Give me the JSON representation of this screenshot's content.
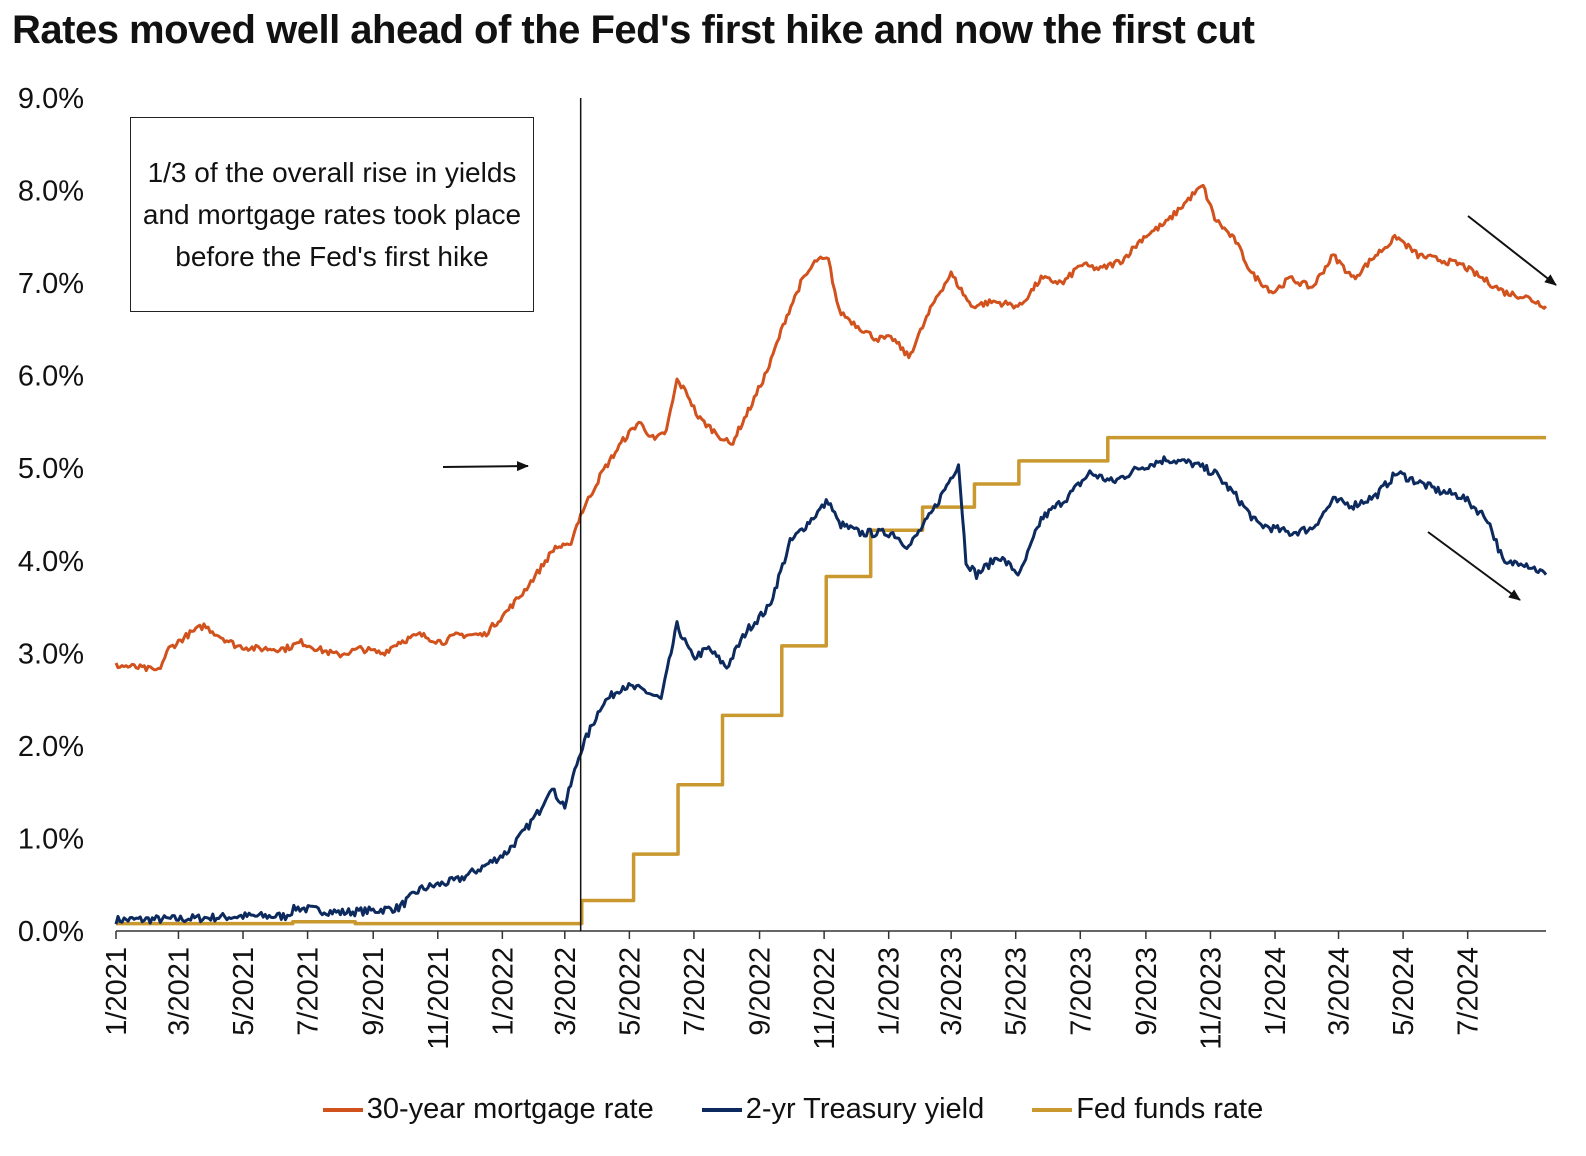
{
  "title": "Rates moved well ahead of the Fed's first hike and now the first cut",
  "annotation": "1/3 of the overall rise in yields and mortgage rates took place before the Fed's first hike",
  "colors": {
    "mortgage": "#d2521e",
    "treasury": "#0d2a5e",
    "fedfunds": "#c9982e",
    "axis": "#333333"
  },
  "chart_data": {
    "type": "line",
    "xlabel": "",
    "ylabel": "",
    "ylim": [
      0,
      9
    ],
    "y_ticks": [
      "0.0%",
      "1.0%",
      "2.0%",
      "3.0%",
      "4.0%",
      "5.0%",
      "6.0%",
      "7.0%",
      "8.0%",
      "9.0%"
    ],
    "x_ticks": [
      "1/2021",
      "3/2021",
      "5/2021",
      "7/2021",
      "9/2021",
      "11/2021",
      "1/2022",
      "3/2022",
      "5/2022",
      "7/2022",
      "9/2022",
      "11/2022",
      "1/2023",
      "3/2023",
      "5/2023",
      "7/2023",
      "9/2023",
      "11/2023",
      "1/2024",
      "3/2024",
      "5/2024",
      "7/2024"
    ],
    "x_range": [
      "2021-01-01",
      "2024-09-13"
    ],
    "first_hike_date": "2022-03-16",
    "legend_position": "bottom",
    "grid": false,
    "series": [
      {
        "name": "30-year mortgage rate",
        "key": "mortgage",
        "points": [
          [
            "2021-01-01",
            2.87
          ],
          [
            "2021-01-20",
            2.85
          ],
          [
            "2021-02-10",
            2.81
          ],
          [
            "2021-02-20",
            3.05
          ],
          [
            "2021-03-10",
            3.2
          ],
          [
            "2021-03-25",
            3.3
          ],
          [
            "2021-04-10",
            3.18
          ],
          [
            "2021-04-25",
            3.08
          ],
          [
            "2021-05-15",
            3.05
          ],
          [
            "2021-06-10",
            3.05
          ],
          [
            "2021-06-25",
            3.12
          ],
          [
            "2021-07-15",
            3.03
          ],
          [
            "2021-07-30",
            2.98
          ],
          [
            "2021-08-20",
            3.05
          ],
          [
            "2021-09-10",
            3.0
          ],
          [
            "2021-09-25",
            3.12
          ],
          [
            "2021-10-15",
            3.2
          ],
          [
            "2021-11-05",
            3.12
          ],
          [
            "2021-11-20",
            3.2
          ],
          [
            "2021-12-15",
            3.2
          ],
          [
            "2022-01-05",
            3.45
          ],
          [
            "2022-01-20",
            3.65
          ],
          [
            "2022-02-05",
            3.9
          ],
          [
            "2022-02-20",
            4.15
          ],
          [
            "2022-03-05",
            4.15
          ],
          [
            "2022-03-16",
            4.5
          ],
          [
            "2022-04-05",
            4.95
          ],
          [
            "2022-04-25",
            5.3
          ],
          [
            "2022-05-10",
            5.5
          ],
          [
            "2022-05-25",
            5.3
          ],
          [
            "2022-06-05",
            5.4
          ],
          [
            "2022-06-15",
            5.95
          ],
          [
            "2022-06-25",
            5.8
          ],
          [
            "2022-07-05",
            5.55
          ],
          [
            "2022-07-20",
            5.4
          ],
          [
            "2022-08-05",
            5.25
          ],
          [
            "2022-08-25",
            5.7
          ],
          [
            "2022-09-10",
            6.1
          ],
          [
            "2022-09-25",
            6.6
          ],
          [
            "2022-10-10",
            7.0
          ],
          [
            "2022-10-25",
            7.25
          ],
          [
            "2022-11-05",
            7.25
          ],
          [
            "2022-11-15",
            6.7
          ],
          [
            "2022-12-01",
            6.55
          ],
          [
            "2022-12-20",
            6.4
          ],
          [
            "2023-01-05",
            6.4
          ],
          [
            "2023-01-20",
            6.2
          ],
          [
            "2023-02-15",
            6.85
          ],
          [
            "2023-03-01",
            7.1
          ],
          [
            "2023-03-20",
            6.75
          ],
          [
            "2023-04-10",
            6.8
          ],
          [
            "2023-05-05",
            6.75
          ],
          [
            "2023-05-25",
            7.05
          ],
          [
            "2023-06-15",
            7.0
          ],
          [
            "2023-07-01",
            7.2
          ],
          [
            "2023-07-20",
            7.15
          ],
          [
            "2023-08-10",
            7.25
          ],
          [
            "2023-08-30",
            7.5
          ],
          [
            "2023-09-20",
            7.65
          ],
          [
            "2023-10-15",
            7.95
          ],
          [
            "2023-10-25",
            8.05
          ],
          [
            "2023-11-05",
            7.7
          ],
          [
            "2023-11-25",
            7.45
          ],
          [
            "2023-12-10",
            7.1
          ],
          [
            "2023-12-30",
            6.9
          ],
          [
            "2024-01-15",
            7.05
          ],
          [
            "2024-02-05",
            6.95
          ],
          [
            "2024-02-25",
            7.3
          ],
          [
            "2024-03-15",
            7.05
          ],
          [
            "2024-04-05",
            7.3
          ],
          [
            "2024-04-25",
            7.5
          ],
          [
            "2024-05-15",
            7.3
          ],
          [
            "2024-06-05",
            7.25
          ],
          [
            "2024-06-25",
            7.2
          ],
          [
            "2024-07-15",
            7.05
          ],
          [
            "2024-08-05",
            6.9
          ],
          [
            "2024-08-25",
            6.85
          ],
          [
            "2024-09-13",
            6.75
          ]
        ]
      },
      {
        "name": "2-yr Treasury yield",
        "key": "treasury",
        "points": [
          [
            "2021-01-01",
            0.12
          ],
          [
            "2021-03-01",
            0.13
          ],
          [
            "2021-05-01",
            0.16
          ],
          [
            "2021-06-10",
            0.16
          ],
          [
            "2021-06-20",
            0.25
          ],
          [
            "2021-08-01",
            0.2
          ],
          [
            "2021-09-01",
            0.22
          ],
          [
            "2021-09-25",
            0.25
          ],
          [
            "2021-10-15",
            0.45
          ],
          [
            "2021-11-01",
            0.5
          ],
          [
            "2021-11-20",
            0.55
          ],
          [
            "2021-12-15",
            0.7
          ],
          [
            "2022-01-05",
            0.85
          ],
          [
            "2022-01-20",
            1.05
          ],
          [
            "2022-02-05",
            1.3
          ],
          [
            "2022-02-15",
            1.55
          ],
          [
            "2022-03-01",
            1.35
          ],
          [
            "2022-03-16",
            1.95
          ],
          [
            "2022-04-05",
            2.45
          ],
          [
            "2022-04-25",
            2.65
          ],
          [
            "2022-05-15",
            2.6
          ],
          [
            "2022-05-31",
            2.5
          ],
          [
            "2022-06-15",
            3.3
          ],
          [
            "2022-06-30",
            2.95
          ],
          [
            "2022-07-15",
            3.05
          ],
          [
            "2022-08-01",
            2.85
          ],
          [
            "2022-08-20",
            3.25
          ],
          [
            "2022-09-10",
            3.5
          ],
          [
            "2022-09-30",
            4.2
          ],
          [
            "2022-10-20",
            4.45
          ],
          [
            "2022-11-05",
            4.65
          ],
          [
            "2022-11-15",
            4.4
          ],
          [
            "2022-12-05",
            4.3
          ],
          [
            "2023-01-05",
            4.3
          ],
          [
            "2023-01-20",
            4.15
          ],
          [
            "2023-02-10",
            4.5
          ],
          [
            "2023-03-08",
            5.05
          ],
          [
            "2023-03-15",
            4.0
          ],
          [
            "2023-03-25",
            3.85
          ],
          [
            "2023-04-15",
            4.05
          ],
          [
            "2023-05-05",
            3.85
          ],
          [
            "2023-05-25",
            4.45
          ],
          [
            "2023-06-20",
            4.7
          ],
          [
            "2023-07-10",
            4.95
          ],
          [
            "2023-08-01",
            4.85
          ],
          [
            "2023-08-25",
            5.0
          ],
          [
            "2023-09-20",
            5.1
          ],
          [
            "2023-10-15",
            5.05
          ],
          [
            "2023-11-05",
            4.95
          ],
          [
            "2023-11-25",
            4.7
          ],
          [
            "2023-12-15",
            4.4
          ],
          [
            "2024-01-15",
            4.3
          ],
          [
            "2024-02-05",
            4.35
          ],
          [
            "2024-02-25",
            4.65
          ],
          [
            "2024-03-15",
            4.6
          ],
          [
            "2024-04-05",
            4.7
          ],
          [
            "2024-04-25",
            4.95
          ],
          [
            "2024-05-15",
            4.85
          ],
          [
            "2024-06-05",
            4.75
          ],
          [
            "2024-06-25",
            4.7
          ],
          [
            "2024-07-20",
            4.45
          ],
          [
            "2024-08-05",
            3.95
          ],
          [
            "2024-08-20",
            4.0
          ],
          [
            "2024-09-13",
            3.85
          ]
        ]
      },
      {
        "name": "Fed funds rate",
        "key": "fedfunds",
        "step": true,
        "points": [
          [
            "2021-01-01",
            0.08
          ],
          [
            "2021-06-17",
            0.1
          ],
          [
            "2021-08-15",
            0.08
          ],
          [
            "2022-03-17",
            0.33
          ],
          [
            "2022-05-05",
            0.83
          ],
          [
            "2022-06-16",
            1.58
          ],
          [
            "2022-07-28",
            2.33
          ],
          [
            "2022-09-22",
            3.08
          ],
          [
            "2022-11-03",
            3.83
          ],
          [
            "2022-12-15",
            4.33
          ],
          [
            "2023-02-02",
            4.58
          ],
          [
            "2023-03-23",
            4.83
          ],
          [
            "2023-05-04",
            5.08
          ],
          [
            "2023-07-27",
            5.33
          ],
          [
            "2024-09-13",
            5.33
          ]
        ]
      }
    ]
  }
}
